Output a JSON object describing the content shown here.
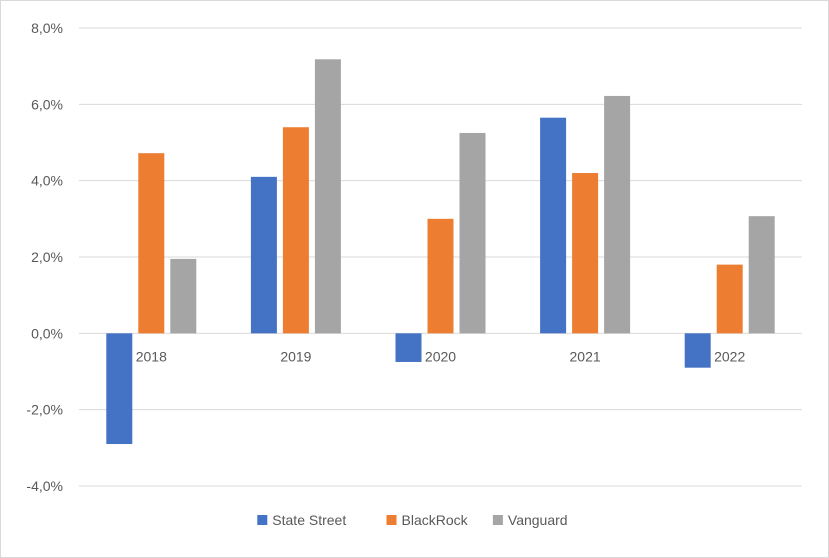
{
  "chart_data": {
    "type": "bar",
    "title": "",
    "xlabel": "",
    "ylabel": "",
    "categories": [
      "2018",
      "2019",
      "2020",
      "2021",
      "2022"
    ],
    "series": [
      {
        "name": "State Street",
        "color": "#4472c4",
        "values": [
          -2.9,
          4.1,
          -0.75,
          5.65,
          -0.9
        ]
      },
      {
        "name": "BlackRock",
        "color": "#ed7d31",
        "values": [
          4.72,
          5.4,
          3.0,
          4.2,
          1.8
        ]
      },
      {
        "name": "Vanguard",
        "color": "#a5a5a5",
        "values": [
          1.95,
          7.18,
          5.25,
          6.22,
          3.07
        ]
      }
    ],
    "ylim": [
      -4.0,
      8.0
    ],
    "yticks": [
      -4.0,
      -2.0,
      0.0,
      2.0,
      4.0,
      6.0,
      8.0
    ],
    "ytick_labels": [
      "-4,0%",
      "-2,0%",
      "0,0%",
      "2,0%",
      "4,0%",
      "6,0%",
      "8,0%"
    ],
    "grid": true,
    "legend_position": "bottom"
  }
}
